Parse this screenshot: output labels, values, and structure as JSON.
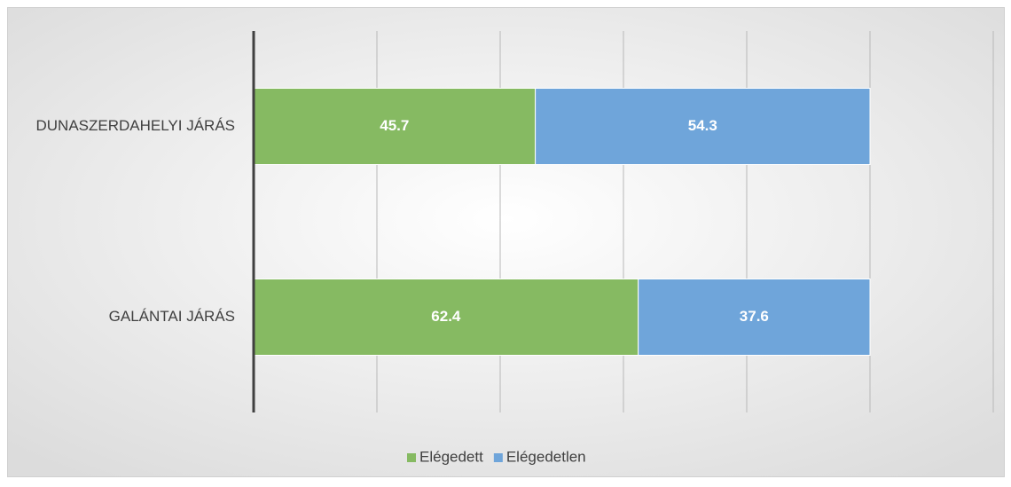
{
  "chart_data": {
    "type": "stacked-bar-horizontal",
    "categories": [
      "DUNASZERDAHELYI JÁRÁS",
      "GALÁNTAI JÁRÁS"
    ],
    "series": [
      {
        "name": "Elégedett",
        "color": "#86ba62",
        "values": [
          45.7,
          62.4
        ]
      },
      {
        "name": "Elégedetlen",
        "color": "#6fa5da",
        "values": [
          54.3,
          37.6
        ]
      }
    ],
    "xlim": [
      0,
      120
    ],
    "xticks": [
      0,
      20,
      40,
      60,
      80,
      100,
      120
    ],
    "grid": true,
    "legend": "bottom"
  }
}
